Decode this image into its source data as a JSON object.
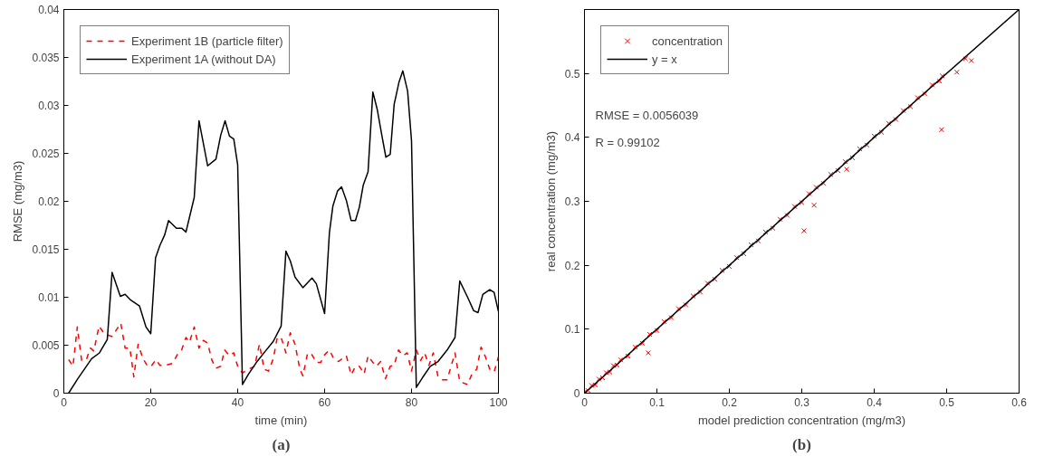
{
  "chart_data": [
    {
      "type": "line",
      "xlabel": "time (min)",
      "ylabel": "RMSE (mg/m3)",
      "xlim": [
        0,
        100
      ],
      "ylim": [
        0,
        0.04
      ],
      "xticks": [
        0,
        20,
        40,
        60,
        80,
        100
      ],
      "yticks": [
        0,
        0.005,
        0.01,
        0.015,
        0.02,
        0.025,
        0.03,
        0.035,
        0.04
      ],
      "grid": false,
      "legend": "top left",
      "line_style": "solid",
      "annotations": [
        "(a)"
      ],
      "series": [
        {
          "name": "Experiment 1B (particle filter)",
          "color": "#ff0000",
          "line_style": "dashed",
          "x": [
            1.1,
            2.1,
            3.1,
            4.1,
            5.2,
            6.1,
            6.9,
            8.1,
            9.3,
            11.1,
            13.1,
            14.1,
            15.2,
            16.1,
            17.1,
            18.2,
            19.3,
            20.1,
            21.2,
            22.1,
            23.2,
            25,
            26.1,
            27.1,
            28.1,
            28.9,
            30,
            31.1,
            32.1,
            33.1,
            34.1,
            35,
            36.1,
            37,
            38.1,
            39.1,
            40,
            41.1,
            42.5,
            43.9,
            45,
            46.1,
            47.1,
            48.2,
            49.1,
            50,
            51.1,
            52.1,
            53.2,
            54.3,
            55,
            56.1,
            57.1,
            58.1,
            59.1,
            60,
            61.1,
            62.1,
            63.2,
            65,
            66.1,
            67.1,
            68,
            69.1,
            70,
            71.1,
            71.9,
            72.9,
            74,
            75.1,
            76,
            77,
            78,
            79,
            80,
            81.1,
            82.1,
            83,
            84,
            85,
            86.1,
            87.1,
            88.2,
            90,
            91.1,
            92.9,
            93.9,
            95,
            96,
            97,
            98,
            99,
            100
          ],
          "values": [
            0.0035,
            0.0028,
            0.0069,
            0.0034,
            0.0035,
            0.0047,
            0.0044,
            0.007,
            0.0062,
            0.0059,
            0.0073,
            0.0047,
            0.0047,
            0.0017,
            0.0051,
            0.0036,
            0.0028,
            0.0028,
            0.0035,
            0.0029,
            0.0029,
            0.0031,
            0.004,
            0.0045,
            0.0058,
            0.0053,
            0.0069,
            0.0047,
            0.0055,
            0.0052,
            0.0034,
            0.0026,
            0.0028,
            0.0045,
            0.0039,
            0.0042,
            0.0028,
            0.0021,
            0.0025,
            0.0028,
            0.0051,
            0.0025,
            0.0023,
            0.0036,
            0.0058,
            0.0058,
            0.0042,
            0.0063,
            0.0051,
            0.0025,
            0.0018,
            0.0042,
            0.004,
            0.0032,
            0.0032,
            0.004,
            0.0045,
            0.0036,
            0.0033,
            0.0039,
            0.0019,
            0.0028,
            0.0028,
            0.002,
            0.0039,
            0.0032,
            0.0028,
            0.0033,
            0.0015,
            0.0028,
            0.0029,
            0.0045,
            0.0039,
            0.0042,
            0.0023,
            0.0045,
            0.0034,
            0.0042,
            0.0029,
            0.0042,
            0.0017,
            0.0014,
            0.0014,
            0.0042,
            0.0012,
            0.0009,
            0.002,
            0.0025,
            0.0048,
            0.0038,
            0.0025,
            0.0022,
            0.0038
          ]
        },
        {
          "name": "Experiment 1A (without DA)",
          "color": "#000000",
          "x": [
            1.1,
            3.2,
            6.4,
            8.2,
            10,
            11.1,
            13,
            14.1,
            15.4,
            17.4,
            18.9,
            20,
            21.1,
            22.1,
            23.2,
            24.1,
            25.9,
            27.1,
            28.1,
            30,
            31.1,
            33.1,
            35,
            36.1,
            37.1,
            38.1,
            39.1,
            40,
            41.1,
            42.5,
            44.3,
            46.4,
            48.2,
            50,
            51.1,
            52.1,
            53.2,
            55,
            57.1,
            58.1,
            60,
            61.1,
            61.9,
            63,
            63.9,
            65,
            66.1,
            67.1,
            68,
            68.9,
            70,
            71.1,
            72.1,
            73.2,
            74.1,
            75.1,
            76,
            77.1,
            78,
            79.1,
            80,
            81.1,
            82.5,
            84.3,
            86.1,
            88.2,
            90,
            91.1,
            92.9,
            94.3,
            95.3,
            96.4,
            98,
            99,
            100
          ],
          "values": [
            0,
            0.0015,
            0.0036,
            0.0042,
            0.0056,
            0.0126,
            0.0101,
            0.0103,
            0.0097,
            0.0091,
            0.0069,
            0.0062,
            0.0141,
            0.0154,
            0.0165,
            0.018,
            0.0172,
            0.0172,
            0.0168,
            0.0204,
            0.0284,
            0.0237,
            0.0244,
            0.0269,
            0.0284,
            0.0268,
            0.0265,
            0.0238,
            0.0009,
            0.002,
            0.0032,
            0.0044,
            0.0054,
            0.007,
            0.0148,
            0.0138,
            0.0121,
            0.011,
            0.012,
            0.0114,
            0.0083,
            0.0167,
            0.0195,
            0.0211,
            0.0215,
            0.0201,
            0.018,
            0.018,
            0.0194,
            0.0217,
            0.0231,
            0.0314,
            0.0296,
            0.0268,
            0.0246,
            0.0249,
            0.0301,
            0.0324,
            0.0336,
            0.0315,
            0.0263,
            0.0006,
            0.0016,
            0.0028,
            0.0033,
            0.0045,
            0.0058,
            0.0117,
            0.01,
            0.0086,
            0.0084,
            0.0103,
            0.0108,
            0.0105,
            0.0085
          ]
        }
      ]
    },
    {
      "type": "scatter",
      "xlabel": "model prediction concentration (mg/m3)",
      "ylabel": "real concentration (mg/m3)",
      "xlim": [
        0,
        0.6
      ],
      "ylim": [
        0,
        0.6
      ],
      "xticks": [
        0,
        0.1,
        0.2,
        0.3,
        0.4,
        0.5,
        0.6
      ],
      "yticks": [
        0,
        0.1,
        0.2,
        0.3,
        0.4,
        0.5,
        {
          "value": 0.6,
          "label": null
        }
      ],
      "grid": false,
      "legend": "top left",
      "annotations": [
        "RMSE = 0.0056039",
        "R = 0.99102",
        "(b)"
      ],
      "series": [
        {
          "name": "concentration",
          "color": "#ff0000",
          "marker": "cross",
          "x": [
            0,
            0.005,
            0.01,
            0.015,
            0.02,
            0.025,
            0.03,
            0.035,
            0.04,
            0.045,
            0.05,
            0.06,
            0.07,
            0.08,
            0.088,
            0.09,
            0.1,
            0.11,
            0.12,
            0.13,
            0.14,
            0.15,
            0.16,
            0.17,
            0.18,
            0.19,
            0.2,
            0.21,
            0.22,
            0.23,
            0.24,
            0.25,
            0.26,
            0.27,
            0.28,
            0.29,
            0.3,
            0.303,
            0.31,
            0.317,
            0.32,
            0.33,
            0.34,
            0.35,
            0.36,
            0.362,
            0.37,
            0.38,
            0.39,
            0.4,
            0.41,
            0.42,
            0.43,
            0.44,
            0.45,
            0.46,
            0.47,
            0.48,
            0.49,
            0.493,
            0.494,
            0.514,
            0.526,
            0.534
          ],
          "values": [
            0.002,
            0.004,
            0.012,
            0.013,
            0.022,
            0.024,
            0.032,
            0.033,
            0.043,
            0.044,
            0.052,
            0.058,
            0.072,
            0.078,
            0.063,
            0.092,
            0.098,
            0.112,
            0.118,
            0.132,
            0.138,
            0.152,
            0.158,
            0.172,
            0.178,
            0.192,
            0.198,
            0.212,
            0.218,
            0.232,
            0.238,
            0.252,
            0.258,
            0.272,
            0.278,
            0.292,
            0.298,
            0.254,
            0.312,
            0.294,
            0.322,
            0.328,
            0.342,
            0.348,
            0.362,
            0.35,
            0.368,
            0.382,
            0.388,
            0.402,
            0.408,
            0.422,
            0.428,
            0.442,
            0.448,
            0.462,
            0.468,
            0.482,
            0.488,
            0.412,
            0.496,
            0.502,
            0.523,
            0.52
          ]
        },
        {
          "name": "y = x",
          "type": "line",
          "color": "#000000",
          "x": [
            0,
            0.6
          ],
          "values": [
            0,
            0.6
          ]
        }
      ]
    }
  ]
}
